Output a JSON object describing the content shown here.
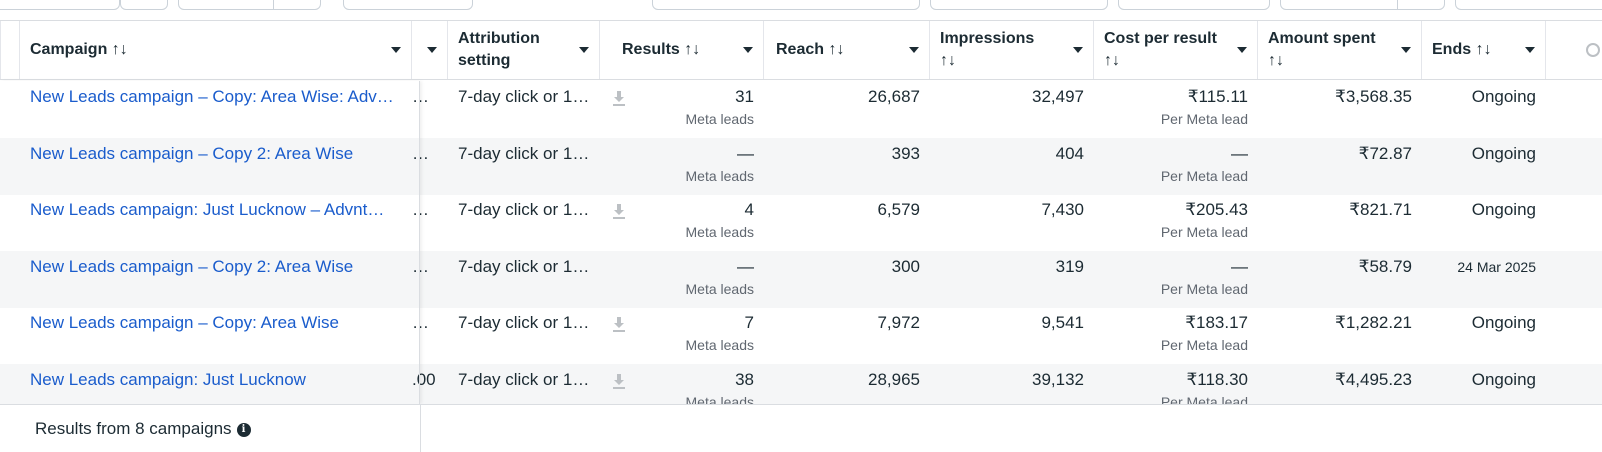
{
  "columns": {
    "campaign": "Campaign ↑↓",
    "attribution": [
      "Attribution",
      "setting"
    ],
    "results": "Results ↑↓",
    "reach": "Reach ↑↓",
    "impressions": [
      "Impressions",
      "↑↓"
    ],
    "cost_per_result": [
      "Cost per result",
      "↑↓"
    ],
    "amount_spent": [
      "Amount spent",
      "↑↓"
    ],
    "ends": "Ends ↑↓"
  },
  "rows": [
    {
      "name": "New Leads campaign – Copy: Area Wise: Adv…",
      "hidden": "…",
      "attribution": "7-day click or 1…",
      "results": "31",
      "results_sub": "Meta leads",
      "reach": "26,687",
      "impressions": "32,497",
      "cost": "₹115.11",
      "cost_sub": "Per Meta lead",
      "spent": "₹3,568.35",
      "ends": "Ongoing",
      "download": true
    },
    {
      "name": "New Leads campaign – Copy 2: Area Wise",
      "hidden": "…",
      "attribution": "7-day click or 1…",
      "results": "—",
      "results_sub": "Meta leads",
      "reach": "393",
      "impressions": "404",
      "cost": "—",
      "cost_sub": "Per Meta lead",
      "spent": "₹72.87",
      "ends": "Ongoing",
      "download": false
    },
    {
      "name": "New Leads campaign: Just Lucknow – Advnt…",
      "hidden": "…",
      "attribution": "7-day click or 1…",
      "results": "4",
      "results_sub": "Meta leads",
      "reach": "6,579",
      "impressions": "7,430",
      "cost": "₹205.43",
      "cost_sub": "Per Meta lead",
      "spent": "₹821.71",
      "ends": "Ongoing",
      "download": true
    },
    {
      "name": "New Leads campaign – Copy 2: Area Wise",
      "hidden": "…",
      "attribution": "7-day click or 1…",
      "results": "—",
      "results_sub": "Meta leads",
      "reach": "300",
      "impressions": "319",
      "cost": "—",
      "cost_sub": "Per Meta lead",
      "spent": "₹58.79",
      "ends": "24 Mar 2025",
      "download": false
    },
    {
      "name": "New Leads campaign – Copy: Area Wise",
      "hidden": "…",
      "attribution": "7-day click or 1…",
      "results": "7",
      "results_sub": "Meta leads",
      "reach": "7,972",
      "impressions": "9,541",
      "cost": "₹183.17",
      "cost_sub": "Per Meta lead",
      "spent": "₹1,282.21",
      "ends": "Ongoing",
      "download": true
    },
    {
      "name": "New Leads campaign: Just Lucknow",
      "hidden": ".00",
      "attribution": "7-day click or 1…",
      "results": "38",
      "results_sub": "Meta leads",
      "reach": "28,965",
      "impressions": "39,132",
      "cost": "₹118.30",
      "cost_sub": "Per Meta lead",
      "spent": "₹4,495.23",
      "ends": "Ongoing",
      "download": true
    }
  ],
  "footer": {
    "results_text": "Results from 8 campaigns",
    "info_glyph": "i"
  },
  "colors": {
    "link": "#1a5ccc",
    "alt_row": "#f5f6f7",
    "border": "#dadde1"
  }
}
